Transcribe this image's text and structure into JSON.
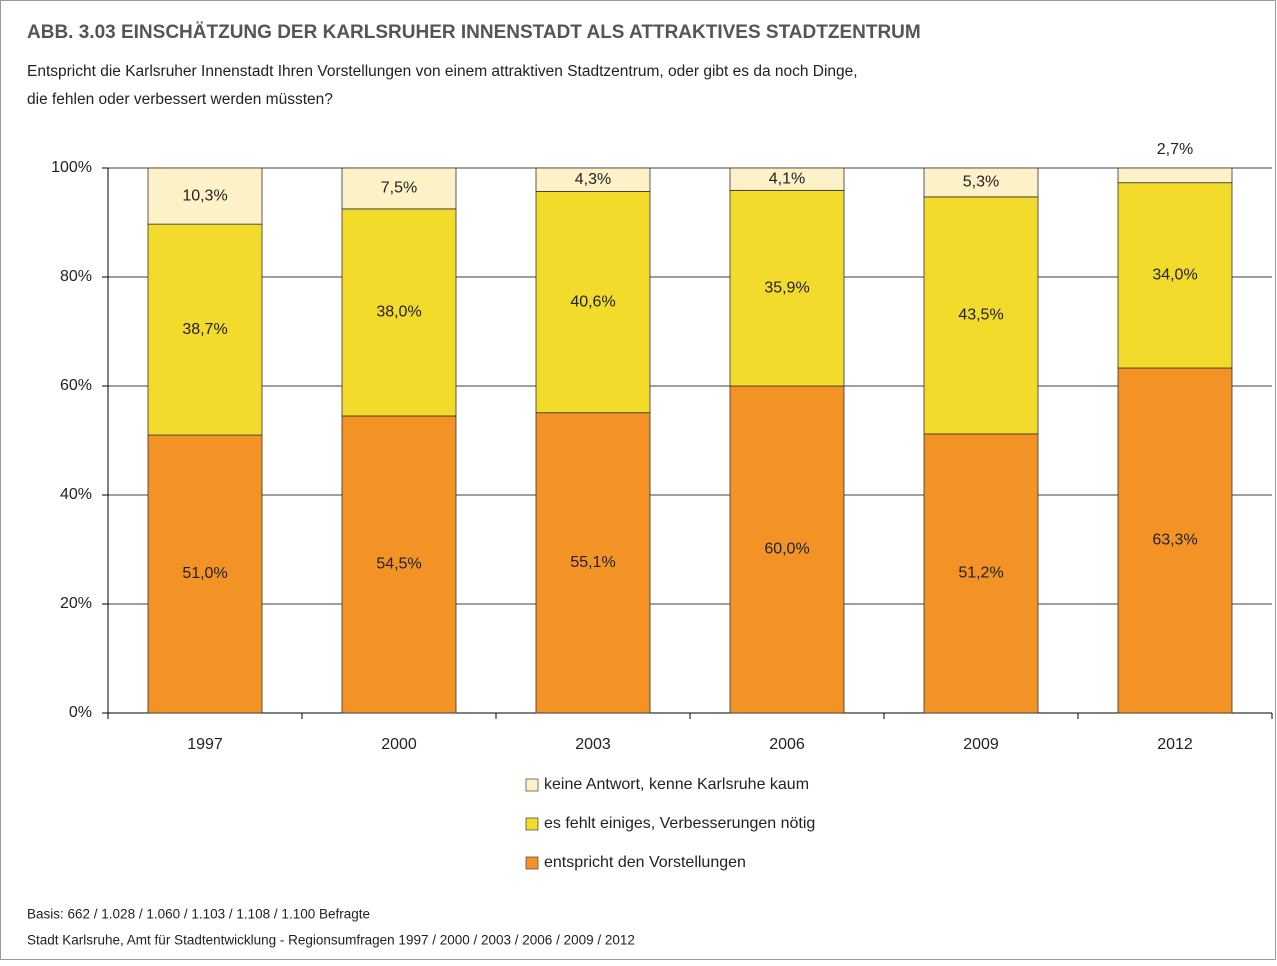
{
  "chart_data": {
    "type": "stacked-bar",
    "title": "ABB. 3.03 EINSCHÄTZUNG DER KARLSRUHER INNENSTADT ALS ATTRAKTIVES STADTZENTRUM",
    "subtitle": [
      "Entspricht die Karlsruher Innenstadt Ihren Vorstellungen von einem attraktiven Stadtzentrum, oder gibt es da noch Dinge,",
      "die fehlen oder verbessert werden müssten?"
    ],
    "categories": [
      "1997",
      "2000",
      "2003",
      "2006",
      "2009",
      "2012"
    ],
    "series": [
      {
        "name": "entspricht den Vorstellungen",
        "color": "#f39325",
        "values": [
          51.0,
          54.5,
          55.1,
          60.0,
          51.2,
          63.3
        ],
        "value_labels": [
          "51,0%",
          "54,5%",
          "55,1%",
          "60,0%",
          "51,2%",
          "63,3%"
        ]
      },
      {
        "name": "es fehlt einiges, Verbesserungen nötig",
        "color": "#f2db2a",
        "values": [
          38.7,
          38.0,
          40.6,
          35.9,
          43.5,
          34.0
        ],
        "value_labels": [
          "38,7%",
          "38,0%",
          "40,6%",
          "35,9%",
          "43,5%",
          "34,0%"
        ]
      },
      {
        "name": "keine Antwort, kenne Karlsruhe kaum",
        "color": "#fdf1c8",
        "values": [
          10.3,
          7.5,
          4.3,
          4.1,
          5.3,
          2.7
        ],
        "value_labels": [
          "10,3%",
          "7,5%",
          "4,3%",
          "4,1%",
          "5,3%",
          "2,7%"
        ]
      }
    ],
    "ylim": [
      0,
      100
    ],
    "yticks": [
      {
        "value": 0,
        "label": "0%"
      },
      {
        "value": 20,
        "label": "20%"
      },
      {
        "value": 40,
        "label": "40%"
      },
      {
        "value": 60,
        "label": "60%"
      },
      {
        "value": 80,
        "label": "80%"
      },
      {
        "value": 100,
        "label": "100%"
      }
    ],
    "grid": true,
    "footer": [
      "Basis: 662 / 1.028 / 1.060 / 1.103 / 1.108 / 1.100 Befragte",
      "Stadt Karlsruhe, Amt für Stadtentwicklung - Regionsumfragen  1997 / 2000 / 2003 / 2006 / 2009 / 2012"
    ]
  }
}
